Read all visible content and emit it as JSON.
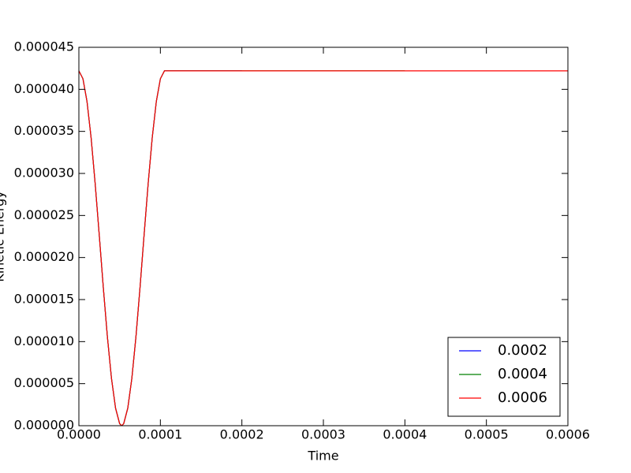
{
  "chart_data": {
    "type": "line",
    "xlabel": "Time",
    "ylabel": "Kinetic Energy",
    "x": [
      0,
      5e-06,
      1e-05,
      1.5e-05,
      2e-05,
      2.5e-05,
      3e-05,
      3.5e-05,
      4e-05,
      4.5e-05,
      5e-05,
      5.25e-05,
      5.5e-05,
      6e-05,
      6.5e-05,
      7e-05,
      7.5e-05,
      8e-05,
      8.5e-05,
      9e-05,
      9.5e-05,
      0.0001,
      0.000105,
      0.0002,
      0.0004,
      0.0006
    ],
    "series": [
      {
        "name": "0.0002",
        "color": "#0000ff",
        "values": [
          4.22e-05,
          4.126e-05,
          3.854e-05,
          3.425e-05,
          2.878e-05,
          2.267e-05,
          1.64e-05,
          1.055e-05,
          5.63e-06,
          2.09e-06,
          2.4e-07,
          0,
          2.4e-07,
          2.09e-06,
          5.63e-06,
          1.055e-05,
          1.64e-05,
          2.267e-05,
          2.878e-05,
          3.425e-05,
          3.854e-05,
          4.126e-05,
          4.22e-05,
          4.22e-05,
          null,
          null
        ]
      },
      {
        "name": "0.0004",
        "color": "#008000",
        "values": [
          4.22e-05,
          4.126e-05,
          3.854e-05,
          3.425e-05,
          2.878e-05,
          2.267e-05,
          1.64e-05,
          1.055e-05,
          5.63e-06,
          2.09e-06,
          2.4e-07,
          0,
          2.4e-07,
          2.09e-06,
          5.63e-06,
          1.055e-05,
          1.64e-05,
          2.267e-05,
          2.878e-05,
          3.425e-05,
          3.854e-05,
          4.126e-05,
          4.22e-05,
          4.22e-05,
          4.22e-05,
          null
        ]
      },
      {
        "name": "0.0006",
        "color": "#ff0000",
        "values": [
          4.22e-05,
          4.126e-05,
          3.854e-05,
          3.425e-05,
          2.878e-05,
          2.267e-05,
          1.64e-05,
          1.055e-05,
          5.63e-06,
          2.09e-06,
          2.4e-07,
          0,
          2.4e-07,
          2.09e-06,
          5.63e-06,
          1.055e-05,
          1.64e-05,
          2.267e-05,
          2.878e-05,
          3.425e-05,
          3.854e-05,
          4.126e-05,
          4.22e-05,
          4.22e-05,
          4.22e-05,
          4.22e-05
        ]
      }
    ],
    "xlim": [
      0,
      0.0006
    ],
    "ylim": [
      0,
      4.5e-05
    ],
    "xticks": [
      {
        "value": 0,
        "label": "0.0000"
      },
      {
        "value": 0.0001,
        "label": "0.0001"
      },
      {
        "value": 0.0002,
        "label": "0.0002"
      },
      {
        "value": 0.0003,
        "label": "0.0003"
      },
      {
        "value": 0.0004,
        "label": "0.0004"
      },
      {
        "value": 0.0005,
        "label": "0.0005"
      },
      {
        "value": 0.0006,
        "label": "0.0006"
      }
    ],
    "yticks": [
      {
        "value": 0,
        "label": "0.000000"
      },
      {
        "value": 5e-06,
        "label": "0.000005"
      },
      {
        "value": 1e-05,
        "label": "0.000010"
      },
      {
        "value": 1.5e-05,
        "label": "0.000015"
      },
      {
        "value": 2e-05,
        "label": "0.000020"
      },
      {
        "value": 2.5e-05,
        "label": "0.000025"
      },
      {
        "value": 3e-05,
        "label": "0.000030"
      },
      {
        "value": 3.5e-05,
        "label": "0.000035"
      },
      {
        "value": 4e-05,
        "label": "0.000040"
      },
      {
        "value": 4.5e-05,
        "label": "0.000045"
      }
    ],
    "legend": "lower right",
    "grid": false
  }
}
